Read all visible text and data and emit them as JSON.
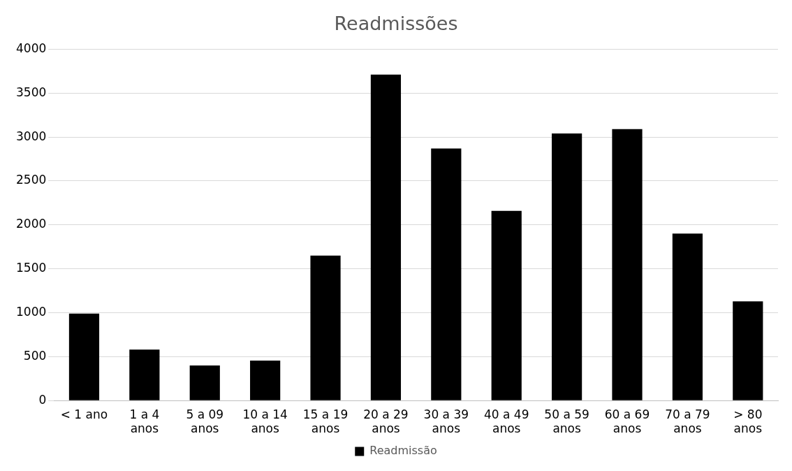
{
  "chart_data": {
    "type": "bar",
    "title": "Readmissões",
    "categories": [
      "< 1 ano",
      "1 a 4 anos",
      "5 a 09 anos",
      "10 a 14 anos",
      "15 a 19 anos",
      "20 a 29 anos",
      "30 a 39 anos",
      "40 a 49 anos",
      "50 a 59 anos",
      "60 a 69 anos",
      "70 a 79 anos",
      "> 80 anos"
    ],
    "series": [
      {
        "name": "Readmissão",
        "color": "#000000",
        "values": [
          990,
          580,
          400,
          455,
          1650,
          3710,
          2870,
          2160,
          3040,
          3090,
          1900,
          1130
        ]
      }
    ],
    "ylim": [
      0,
      4000
    ],
    "yticks": [
      0,
      500,
      1000,
      1500,
      2000,
      2500,
      3000,
      3500,
      4000
    ],
    "grid": "y",
    "legend": "bottom"
  }
}
